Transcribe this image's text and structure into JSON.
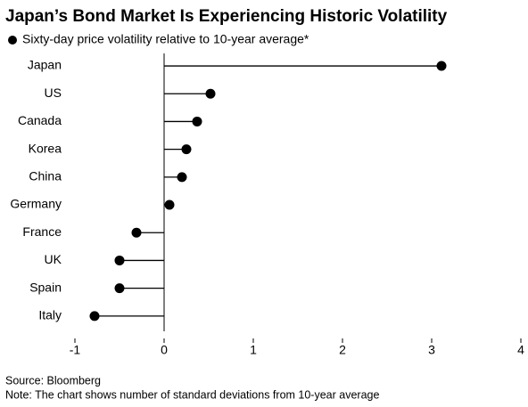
{
  "chart_data": {
    "type": "lollipop",
    "title": "Japan’s Bond Market Is Experiencing Historic Volatility",
    "categories": [
      "Japan",
      "US",
      "Canada",
      "Korea",
      "China",
      "Germany",
      "France",
      "UK",
      "Spain",
      "Italy"
    ],
    "series": [
      {
        "name": "Sixty-day price volatility relative to 10-year average*",
        "color": "#000000",
        "values": [
          3.11,
          0.52,
          0.37,
          0.25,
          0.2,
          0.06,
          -0.31,
          -0.5,
          -0.5,
          -0.78
        ]
      }
    ],
    "xlim": [
      -1,
      4
    ],
    "xticks": [
      -1,
      0,
      1,
      2,
      3,
      4
    ],
    "source": "Source: Bloomberg",
    "note": "Note: The chart shows number of standard deviations from 10-year average"
  }
}
